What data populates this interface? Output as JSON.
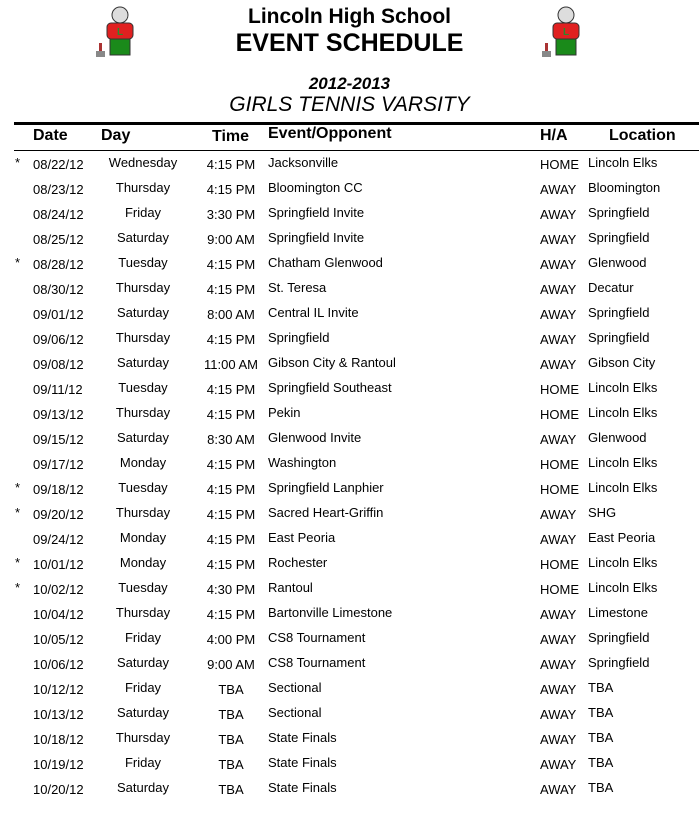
{
  "header": {
    "school": "Lincoln High School",
    "title": "EVENT SCHEDULE",
    "season": "2012-2013",
    "team": "GIRLS TENNIS VARSITY"
  },
  "columns": {
    "date": "Date",
    "day": "Day",
    "time": "Time",
    "event": "Event/Opponent",
    "ha": "H/A",
    "location": "Location"
  },
  "rows": [
    {
      "star": "*",
      "date": "08/22/12",
      "day": "Wednesday",
      "time": "4:15 PM",
      "event": "Jacksonville",
      "ha": "HOME",
      "location": "Lincoln Elks"
    },
    {
      "star": "",
      "date": "08/23/12",
      "day": "Thursday",
      "time": "4:15 PM",
      "event": "Bloomington CC",
      "ha": "AWAY",
      "location": "Bloomington"
    },
    {
      "star": "",
      "date": "08/24/12",
      "day": "Friday",
      "time": "3:30 PM",
      "event": "Springfield Invite",
      "ha": "AWAY",
      "location": "Springfield"
    },
    {
      "star": "",
      "date": "08/25/12",
      "day": "Saturday",
      "time": "9:00 AM",
      "event": "Springfield Invite",
      "ha": "AWAY",
      "location": "Springfield"
    },
    {
      "star": "*",
      "date": "08/28/12",
      "day": "Tuesday",
      "time": "4:15 PM",
      "event": "Chatham Glenwood",
      "ha": "AWAY",
      "location": "Glenwood"
    },
    {
      "star": "",
      "date": "08/30/12",
      "day": "Thursday",
      "time": "4:15 PM",
      "event": "St. Teresa",
      "ha": "AWAY",
      "location": "Decatur"
    },
    {
      "star": "",
      "date": "09/01/12",
      "day": "Saturday",
      "time": "8:00 AM",
      "event": "Central IL Invite",
      "ha": "AWAY",
      "location": "Springfield"
    },
    {
      "star": "",
      "date": "09/06/12",
      "day": "Thursday",
      "time": "4:15 PM",
      "event": "Springfield",
      "ha": "AWAY",
      "location": "Springfield"
    },
    {
      "star": "",
      "date": "09/08/12",
      "day": "Saturday",
      "time": "11:00 AM",
      "event": "Gibson City & Rantoul",
      "ha": "AWAY",
      "location": "Gibson City"
    },
    {
      "star": "",
      "date": "09/11/12",
      "day": "Tuesday",
      "time": "4:15 PM",
      "event": "Springfield Southeast",
      "ha": "HOME",
      "location": "Lincoln Elks"
    },
    {
      "star": "",
      "date": "09/13/12",
      "day": "Thursday",
      "time": "4:15 PM",
      "event": "Pekin",
      "ha": "HOME",
      "location": "Lincoln Elks"
    },
    {
      "star": "",
      "date": "09/15/12",
      "day": "Saturday",
      "time": "8:30 AM",
      "event": "Glenwood Invite",
      "ha": "AWAY",
      "location": "Glenwood"
    },
    {
      "star": "",
      "date": "09/17/12",
      "day": "Monday",
      "time": "4:15 PM",
      "event": "Washington",
      "ha": "HOME",
      "location": "Lincoln Elks"
    },
    {
      "star": "*",
      "date": "09/18/12",
      "day": "Tuesday",
      "time": "4:15 PM",
      "event": "Springfield Lanphier",
      "ha": "HOME",
      "location": "Lincoln Elks"
    },
    {
      "star": "*",
      "date": "09/20/12",
      "day": "Thursday",
      "time": "4:15 PM",
      "event": "Sacred Heart-Griffin",
      "ha": "AWAY",
      "location": "SHG"
    },
    {
      "star": "",
      "date": "09/24/12",
      "day": "Monday",
      "time": "4:15 PM",
      "event": "East Peoria",
      "ha": "AWAY",
      "location": "East Peoria"
    },
    {
      "star": "*",
      "date": "10/01/12",
      "day": "Monday",
      "time": "4:15 PM",
      "event": "Rochester",
      "ha": "HOME",
      "location": "Lincoln Elks"
    },
    {
      "star": "*",
      "date": "10/02/12",
      "day": "Tuesday",
      "time": "4:30 PM",
      "event": "Rantoul",
      "ha": "HOME",
      "location": "Lincoln Elks"
    },
    {
      "star": "",
      "date": "10/04/12",
      "day": "Thursday",
      "time": "4:15 PM",
      "event": "Bartonville Limestone",
      "ha": "AWAY",
      "location": "Limestone"
    },
    {
      "star": "",
      "date": "10/05/12",
      "day": "Friday",
      "time": "4:00 PM",
      "event": "CS8 Tournament",
      "ha": "AWAY",
      "location": "Springfield"
    },
    {
      "star": "",
      "date": "10/06/12",
      "day": "Saturday",
      "time": "9:00 AM",
      "event": "CS8 Tournament",
      "ha": "AWAY",
      "location": "Springfield"
    },
    {
      "star": "",
      "date": "10/12/12",
      "day": "Friday",
      "time": "TBA",
      "event": "Sectional",
      "ha": "AWAY",
      "location": "TBA"
    },
    {
      "star": "",
      "date": "10/13/12",
      "day": "Saturday",
      "time": "TBA",
      "event": "Sectional",
      "ha": "AWAY",
      "location": "TBA"
    },
    {
      "star": "",
      "date": "10/18/12",
      "day": "Thursday",
      "time": "TBA",
      "event": "State Finals",
      "ha": "AWAY",
      "location": "TBA"
    },
    {
      "star": "",
      "date": "10/19/12",
      "day": "Friday",
      "time": "TBA",
      "event": "State Finals",
      "ha": "AWAY",
      "location": "TBA"
    },
    {
      "star": "",
      "date": "10/20/12",
      "day": "Saturday",
      "time": "TBA",
      "event": "State Finals",
      "ha": "AWAY",
      "location": "TBA"
    }
  ]
}
